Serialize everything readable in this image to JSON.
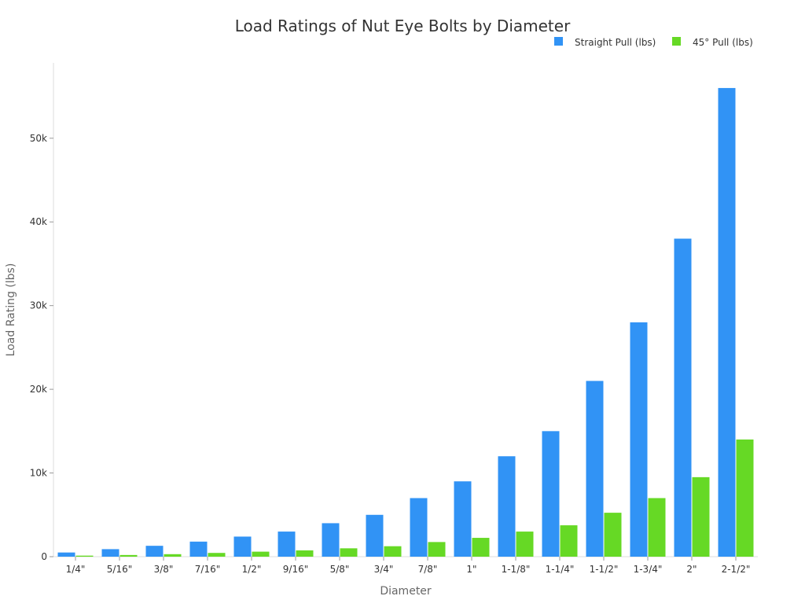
{
  "chart_data": {
    "type": "bar",
    "title": "Load Ratings of Nut Eye Bolts by Diameter",
    "xlabel": "Diameter",
    "ylabel": "Load Rating (lbs)",
    "ylim": [
      0,
      59000
    ],
    "yticks": [
      0,
      10000,
      20000,
      30000,
      40000,
      50000
    ],
    "ytick_labels": [
      "0",
      "10k",
      "20k",
      "30k",
      "40k",
      "50k"
    ],
    "grid": false,
    "legend_placement": "top-right",
    "categories": [
      "1/4\"",
      "5/16\"",
      "3/8\"",
      "7/16\"",
      "1/2\"",
      "9/16\"",
      "5/8\"",
      "3/4\"",
      "7/8\"",
      "1\"",
      "1-1/8\"",
      "1-1/4\"",
      "1-1/2\"",
      "1-3/4\"",
      "2\"",
      "2-1/2\""
    ],
    "series": [
      {
        "name": "Straight Pull (lbs)",
        "color": "#3193f5",
        "values": [
          500,
          900,
          1300,
          1800,
          2400,
          3000,
          4000,
          5000,
          7000,
          9000,
          12000,
          15000,
          21000,
          28000,
          38000,
          56000
        ]
      },
      {
        "name": "45° Pull (lbs)",
        "color": "#66d925",
        "values": [
          125,
          200,
          300,
          450,
          600,
          750,
          1000,
          1250,
          1750,
          2250,
          3000,
          3750,
          5250,
          7000,
          9500,
          14000
        ]
      }
    ]
  }
}
